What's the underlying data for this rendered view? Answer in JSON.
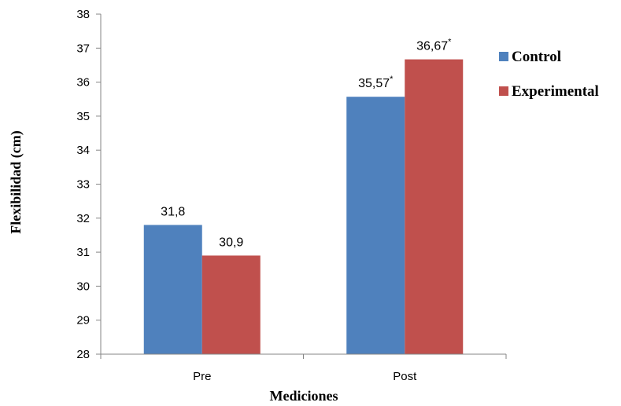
{
  "chart_data": {
    "type": "bar",
    "categories": [
      "Pre",
      "Post"
    ],
    "series": [
      {
        "name": "Control",
        "values": [
          31.8,
          35.57
        ],
        "labels": [
          "31,8",
          "35,57"
        ],
        "marks": [
          "",
          "*"
        ],
        "color": "#4F81BD"
      },
      {
        "name": "Experimental",
        "values": [
          30.9,
          36.67
        ],
        "labels": [
          "30,9",
          "36,67"
        ],
        "marks": [
          "",
          "*"
        ],
        "color": "#C0504D"
      }
    ],
    "xlabel": "Mediciones",
    "ylabel": "Flexibilidad (cm)",
    "ylim": [
      28,
      38
    ],
    "yticks": [
      28,
      29,
      30,
      31,
      32,
      33,
      34,
      35,
      36,
      37,
      38
    ],
    "grid": false,
    "legend": "right"
  }
}
